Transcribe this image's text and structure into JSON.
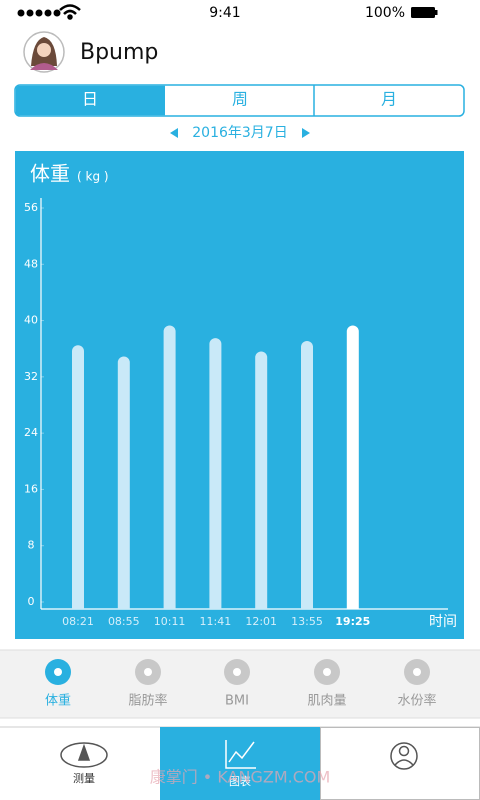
{
  "status_bar": {
    "time": "9:41",
    "battery": "100%"
  },
  "header": {
    "title": "Bpump"
  },
  "period_tabs": [
    "日",
    "周",
    "月"
  ],
  "date": "2016年3月7日",
  "chart_data": {
    "type": "bar",
    "title": "体重",
    "unit": "( kg )",
    "x_label": "时间",
    "categories": [
      "08:21",
      "08:55",
      "10:11",
      "11:41",
      "12:01",
      "13:55",
      "19:25"
    ],
    "values": [
      36.5,
      34.9,
      39.3,
      37.5,
      35.6,
      37.1,
      39.3
    ],
    "colors": [
      "#c9e9f8",
      "#c9e9f8",
      "#c9e9f8",
      "#c9e9f8",
      "#c9e9f8",
      "#c9e9f8",
      "#ffffff"
    ],
    "ylim": [
      0,
      56
    ],
    "yticks": [
      0,
      8,
      16,
      24,
      32,
      40,
      48,
      56
    ],
    "background": "#29b0e0"
  },
  "metric_tabs": [
    "体重",
    "脂肪率",
    "BMI",
    "肌肉量",
    "水份率"
  ],
  "bottom_nav": [
    "测量",
    "图表"
  ],
  "watermark": "康掌门 • KANGZM.COM"
}
